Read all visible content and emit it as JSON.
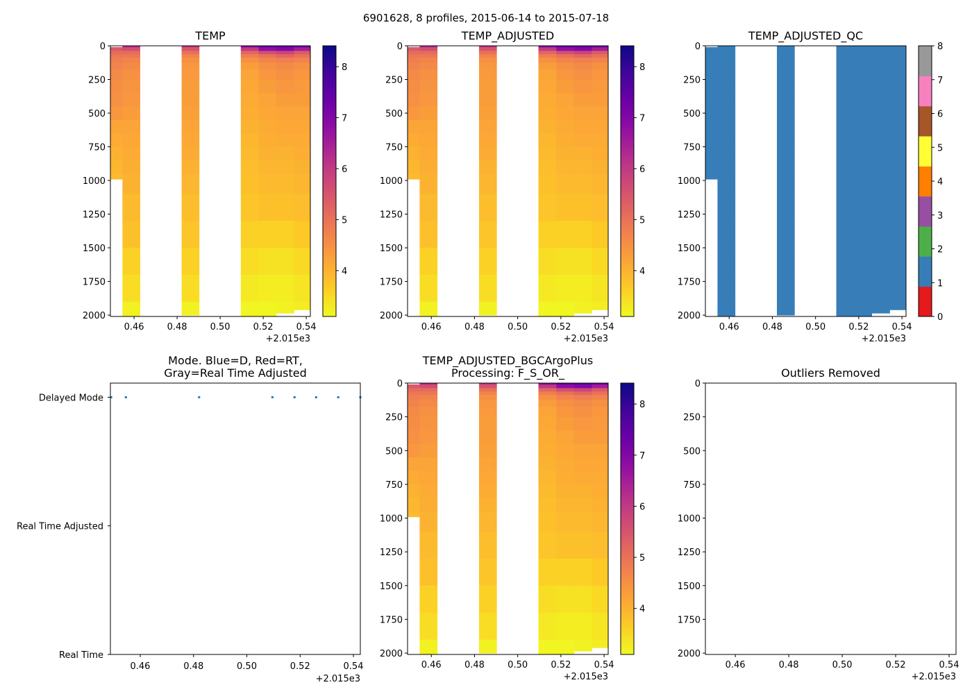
{
  "figure": {
    "suptitle": "6901628, 8 profiles, 2015-06-14 to 2015-07-18"
  },
  "chart_data": {
    "type": "heatmap",
    "profile_times": [
      2015.4491,
      2015.4546,
      2015.4821,
      2015.5096,
      2015.5179,
      2015.526,
      2015.5343,
      2015.5426
    ],
    "pressure_levels": [
      0,
      25,
      50,
      75,
      100,
      150,
      200,
      300,
      400,
      500,
      600,
      700,
      800,
      900,
      1000,
      1200,
      1400,
      1600,
      1800,
      2000
    ],
    "profiles": [
      {
        "x0": 0.4491,
        "x1": 0.4546,
        "pres_min": 10,
        "pres_max": 990,
        "temp": [
          5.6,
          5.4,
          5.1,
          4.9,
          4.8,
          4.7,
          4.6,
          4.55,
          4.5,
          4.4,
          4.2,
          4.1,
          4.0,
          3.95,
          3.9,
          null,
          null,
          null,
          null,
          null
        ]
      },
      {
        "x0": 0.4546,
        "x1": 0.4627,
        "pres_min": 0,
        "pres_max": 2005,
        "temp": [
          6.2,
          5.6,
          5.1,
          4.9,
          4.7,
          4.6,
          4.5,
          4.45,
          4.4,
          4.3,
          4.2,
          4.15,
          4.1,
          4.05,
          4.0,
          3.9,
          3.8,
          3.6,
          3.45,
          3.2
        ]
      },
      {
        "x0": 0.4821,
        "x1": 0.4902,
        "pres_min": 0,
        "pres_max": 2000,
        "temp": [
          6.0,
          5.5,
          5.0,
          4.7,
          4.5,
          4.4,
          4.35,
          4.3,
          4.3,
          4.25,
          4.2,
          4.15,
          4.1,
          4.0,
          3.95,
          3.85,
          3.75,
          3.6,
          3.45,
          3.2
        ]
      },
      {
        "x0": 0.5096,
        "x1": 0.5179,
        "pres_min": 0,
        "pres_max": 2005,
        "temp": [
          6.8,
          6.0,
          5.2,
          4.8,
          4.5,
          4.3,
          4.2,
          4.15,
          4.1,
          4.05,
          4.0,
          3.95,
          3.9,
          3.85,
          3.8,
          3.75,
          3.6,
          3.45,
          3.3,
          3.15
        ]
      },
      {
        "x0": 0.5179,
        "x1": 0.526,
        "pres_min": 0,
        "pres_max": 2005,
        "temp": [
          7.3,
          6.8,
          5.6,
          5.0,
          4.7,
          4.5,
          4.4,
          4.3,
          4.2,
          4.15,
          4.1,
          4.05,
          4.0,
          3.95,
          3.9,
          3.8,
          3.6,
          3.4,
          3.25,
          3.15
        ]
      },
      {
        "x0": 0.526,
        "x1": 0.5343,
        "pres_min": 0,
        "pres_max": 1985,
        "temp": [
          7.4,
          7.0,
          5.8,
          5.2,
          4.8,
          4.6,
          4.5,
          4.4,
          4.3,
          4.2,
          4.15,
          4.1,
          4.0,
          3.95,
          3.9,
          3.8,
          3.6,
          3.4,
          3.25,
          3.2
        ]
      },
      {
        "x0": 0.5343,
        "x1": 0.5426,
        "pres_min": 0,
        "pres_max": 1960,
        "temp": [
          7.2,
          6.5,
          5.4,
          5.0,
          4.7,
          4.5,
          4.4,
          4.35,
          4.3,
          4.2,
          4.15,
          4.1,
          4.05,
          4.0,
          3.95,
          3.85,
          3.7,
          3.5,
          3.35,
          3.25
        ]
      }
    ],
    "x_offset_label": "+2.015e3",
    "heat_xlim": [
      0.449,
      0.5419
    ],
    "wide_xlim": [
      0.4488,
      0.5426
    ],
    "x_ticks": [
      0.46,
      0.48,
      0.5,
      0.52,
      0.54
    ],
    "x_tick_labels": [
      "0.46",
      "0.48",
      "0.50",
      "0.52",
      "0.54"
    ],
    "y_ticks": [
      0,
      250,
      500,
      750,
      1000,
      1250,
      1500,
      1750,
      2000
    ],
    "y_tick_labels": [
      "0",
      "250",
      "500",
      "750",
      "1000",
      "1250",
      "1500",
      "1750",
      "2000"
    ],
    "ylim": [
      2010,
      0
    ],
    "temp_colorbar": {
      "vmin": 3.1,
      "vmax": 8.41,
      "ticks": [
        4,
        5,
        6,
        7,
        8
      ],
      "tick_labels": [
        "4",
        "5",
        "6",
        "7",
        "8"
      ],
      "cmap": "plasma_r"
    },
    "qc_value": 1,
    "qc_colorbar": {
      "ticks": [
        0,
        1,
        2,
        3,
        4,
        5,
        6,
        7,
        8
      ],
      "tick_labels": [
        "0",
        "1",
        "2",
        "3",
        "4",
        "5",
        "6",
        "7",
        "8"
      ],
      "colors": [
        "#e41a1c",
        "#377eb8",
        "#4daf4a",
        "#984ea3",
        "#ff7f00",
        "#ffff33",
        "#a65628",
        "#f781bf",
        "#999999"
      ]
    },
    "mode": {
      "categories": [
        "Real Time",
        "Real Time Adjusted",
        "Delayed Mode"
      ],
      "values": [
        2,
        2,
        2,
        2,
        2,
        2,
        2,
        2
      ],
      "ylim": [
        0,
        2.11
      ],
      "point_color": "#1f77b4"
    },
    "panels": [
      {
        "title": "TEMP"
      },
      {
        "title": "TEMP_ADJUSTED"
      },
      {
        "title": "TEMP_ADJUSTED_QC"
      },
      {
        "title_line1": "Mode. Blue=D, Red=RT,",
        "title_line2": "Gray=Real Time Adjusted"
      },
      {
        "title_line1": "TEMP_ADJUSTED_BGCArgoPlus",
        "title_line2": "Processing: F_S_OR_"
      },
      {
        "title": "Outliers Removed"
      }
    ]
  }
}
